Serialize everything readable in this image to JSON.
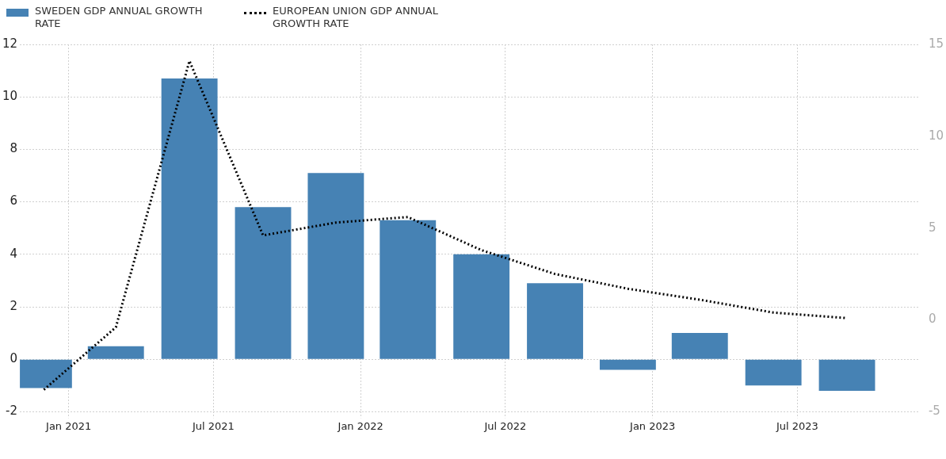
{
  "chart_data": {
    "type": "bar",
    "x": [
      "2020-12",
      "2021-03",
      "2021-06",
      "2021-09",
      "2021-12",
      "2022-03",
      "2022-06",
      "2022-09",
      "2022-12",
      "2023-03",
      "2023-06",
      "2023-09"
    ],
    "series": [
      {
        "name": "SWEDEN GDP ANNUAL GROWTH RATE",
        "color": "#4682b4",
        "values": [
          -1.1,
          0.5,
          10.7,
          5.8,
          7.1,
          5.3,
          4.0,
          2.9,
          -0.4,
          1.0,
          -1.0,
          -1.2
        ]
      },
      {
        "name": "EUROPEAN UNION GDP ANNUAL GROWTH RATE",
        "type": "line",
        "axis": "y2",
        "color": "#000000",
        "line_style": "dotted",
        "marker": "none",
        "values": [
          -3.8,
          -0.4,
          14.1,
          4.6,
          5.3,
          5.6,
          3.8,
          2.5,
          1.7,
          1.1,
          0.4,
          0.1
        ]
      }
    ],
    "xlim": [
      "2020-11-01",
      "2023-12-01"
    ],
    "xticks": [
      {
        "value": "2021-01",
        "label": "Jan 2021"
      },
      {
        "value": "2021-07",
        "label": "Jul 2021"
      },
      {
        "value": "2022-01",
        "label": "Jan 2022"
      },
      {
        "value": "2022-07",
        "label": "Jul 2022"
      },
      {
        "value": "2023-01",
        "label": "Jan 2023"
      },
      {
        "value": "2023-07",
        "label": "Jul 2023"
      }
    ],
    "ylim": [
      -2,
      12
    ],
    "yticks": [
      -2,
      0,
      2,
      4,
      6,
      8,
      10,
      12
    ],
    "y2lim": [
      -5,
      15
    ],
    "y2ticks": [
      -5,
      0,
      5,
      10,
      15
    ],
    "grid": true,
    "legend": "top left"
  }
}
